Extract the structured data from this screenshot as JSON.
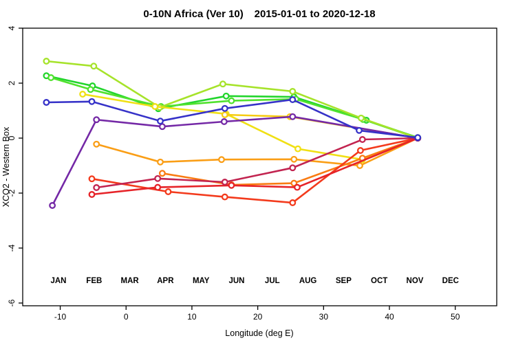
{
  "title": "0-10N Africa (Ver 10)   2015-01-01 to 2020-12-18",
  "chart_data": {
    "type": "line",
    "title": "0-10N Africa (Ver 10)   2015-01-01 to 2020-12-18",
    "xlabel": "Longitude (deg E)",
    "ylabel": "XCO2 - Western Box",
    "xlim": [
      -15.7,
      56.3
    ],
    "ylim": [
      -6.1,
      4.0
    ],
    "xticks": [
      -10,
      0,
      10,
      20,
      30,
      40,
      50
    ],
    "yticks": [
      -6,
      -4,
      -2,
      0,
      2,
      4
    ],
    "grid": false,
    "marker": "open-circle",
    "legend_position": "inside-bottom",
    "series": [
      {
        "name": "JAN",
        "color": "#22d52c",
        "points": [
          [
            -12.1,
            2.27
          ],
          [
            -5.1,
            1.9
          ],
          [
            4.9,
            1.07
          ],
          [
            15.2,
            1.53
          ],
          [
            25.5,
            1.5
          ],
          [
            36.5,
            0.65
          ],
          [
            44.3,
            0.02
          ]
        ]
      },
      {
        "name": "FEB",
        "color": "#50e22e",
        "points": [
          [
            -11.4,
            2.2
          ],
          [
            -5.4,
            1.77
          ],
          [
            5.3,
            1.15
          ],
          [
            16.0,
            1.36
          ],
          [
            25.8,
            1.42
          ],
          [
            36.0,
            0.68
          ],
          [
            44.3,
            0.0
          ]
        ]
      },
      {
        "name": "MAR",
        "color": "#a6e32a",
        "points": [
          [
            -12.1,
            2.8
          ],
          [
            -4.9,
            2.62
          ],
          [
            5.1,
            1.12
          ],
          [
            14.7,
            1.97
          ],
          [
            25.3,
            1.7
          ],
          [
            35.7,
            0.73
          ],
          [
            44.3,
            0.0
          ]
        ]
      },
      {
        "name": "APR",
        "color": "#f0e014",
        "points": [
          [
            -6.6,
            1.6
          ],
          [
            4.4,
            1.15
          ],
          [
            15.2,
            0.88
          ],
          [
            26.1,
            -0.39
          ],
          [
            35.9,
            -0.78
          ],
          [
            44.3,
            0.0
          ]
        ]
      },
      {
        "name": "MAY",
        "color": "#f6cb12",
        "points": [
          [
            15.0,
            0.85
          ],
          [
            24.9,
            0.78
          ],
          [
            44.3,
            0.0
          ]
        ]
      },
      {
        "name": "JUN",
        "color": "#fa9e16",
        "points": [
          [
            -4.5,
            -0.22
          ],
          [
            5.2,
            -0.87
          ],
          [
            14.5,
            -0.78
          ],
          [
            25.5,
            -0.77
          ],
          [
            35.5,
            -1.0
          ],
          [
            44.3,
            0.0
          ]
        ]
      },
      {
        "name": "JUL",
        "color": "#f97b12",
        "points": [
          [
            5.5,
            -1.28
          ],
          [
            16.0,
            -1.7
          ],
          [
            25.5,
            -1.64
          ],
          [
            35.9,
            -0.73
          ],
          [
            44.3,
            0.0
          ]
        ]
      },
      {
        "name": "AUG",
        "color": "#f33a1c",
        "points": [
          [
            -5.2,
            -1.48
          ],
          [
            6.4,
            -1.95
          ],
          [
            15.0,
            -2.14
          ],
          [
            25.3,
            -2.35
          ],
          [
            35.6,
            -0.45
          ],
          [
            44.3,
            0.0
          ]
        ]
      },
      {
        "name": "SEP",
        "color": "#e62328",
        "points": [
          [
            -5.2,
            -2.05
          ],
          [
            4.8,
            -1.79
          ],
          [
            16.0,
            -1.72
          ],
          [
            26.0,
            -1.79
          ],
          [
            44.3,
            0.0
          ]
        ]
      },
      {
        "name": "OCT",
        "color": "#c22450",
        "points": [
          [
            -4.5,
            -1.8
          ],
          [
            4.8,
            -1.47
          ],
          [
            15.0,
            -1.6
          ],
          [
            25.3,
            -1.08
          ],
          [
            35.9,
            -0.05
          ],
          [
            44.3,
            0.0
          ]
        ]
      },
      {
        "name": "NOV",
        "color": "#7428a6",
        "points": [
          [
            -11.2,
            -2.45
          ],
          [
            -4.5,
            0.67
          ],
          [
            5.5,
            0.42
          ],
          [
            14.9,
            0.6
          ],
          [
            25.3,
            0.78
          ],
          [
            44.3,
            0.0
          ]
        ]
      },
      {
        "name": "DEC",
        "color": "#3632c8",
        "points": [
          [
            -12.1,
            1.3
          ],
          [
            -5.2,
            1.33
          ],
          [
            5.2,
            0.62
          ],
          [
            15.0,
            1.08
          ],
          [
            25.3,
            1.4
          ],
          [
            35.4,
            0.28
          ],
          [
            44.3,
            0.02
          ]
        ]
      }
    ]
  }
}
